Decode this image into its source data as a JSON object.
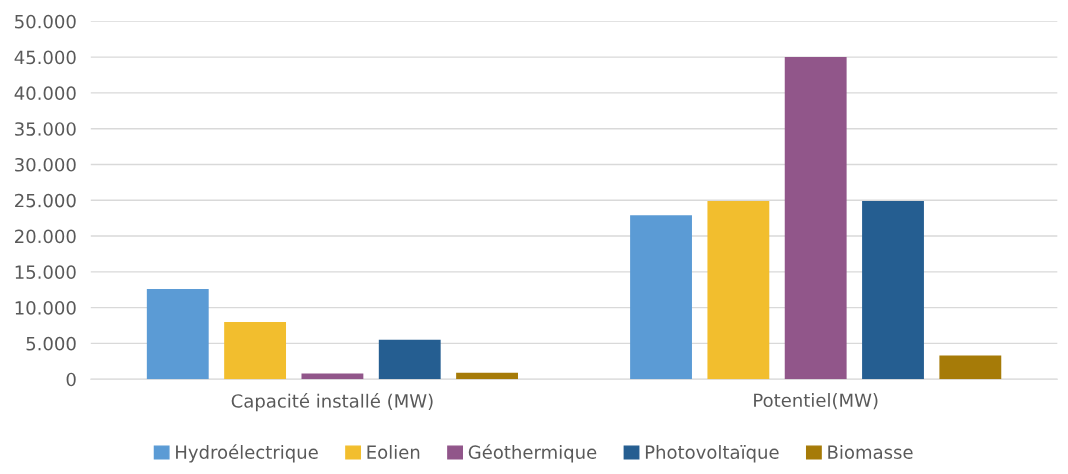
{
  "chart_data": {
    "type": "bar",
    "categories": [
      "Capacité installé (MW)",
      "Potentiel(MW)"
    ],
    "series": [
      {
        "name": "Hydroélectrique",
        "color": "#5b9bd5",
        "values": [
          12600,
          22900
        ]
      },
      {
        "name": "Eolien",
        "color": "#f2be2e",
        "values": [
          8000,
          24900
        ]
      },
      {
        "name": "Géothermique",
        "color": "#91568a",
        "values": [
          800,
          45000
        ]
      },
      {
        "name": "Photovoltaïque",
        "color": "#255e91",
        "values": [
          5500,
          24900
        ]
      },
      {
        "name": "Biomasse",
        "color": "#a67b08",
        "values": [
          900,
          3300
        ]
      }
    ],
    "ylim": [
      0,
      50000
    ],
    "yticks": [
      0,
      {
        "value": 5000,
        "label": "5.000"
      },
      {
        "value": 10000,
        "label": "10.000"
      },
      {
        "value": 15000,
        "label": "15.000"
      },
      {
        "value": 20000,
        "label": "20.000"
      },
      {
        "value": 25000,
        "label": "25.000"
      },
      {
        "value": 30000,
        "label": "30.000"
      },
      {
        "value": 35000,
        "label": "35.000"
      },
      {
        "value": 40000,
        "label": "40.000"
      },
      {
        "value": 45000,
        "label": "45.000"
      },
      {
        "value": 50000,
        "label": "50.000"
      }
    ],
    "grid": "y",
    "legend": "bottom"
  }
}
